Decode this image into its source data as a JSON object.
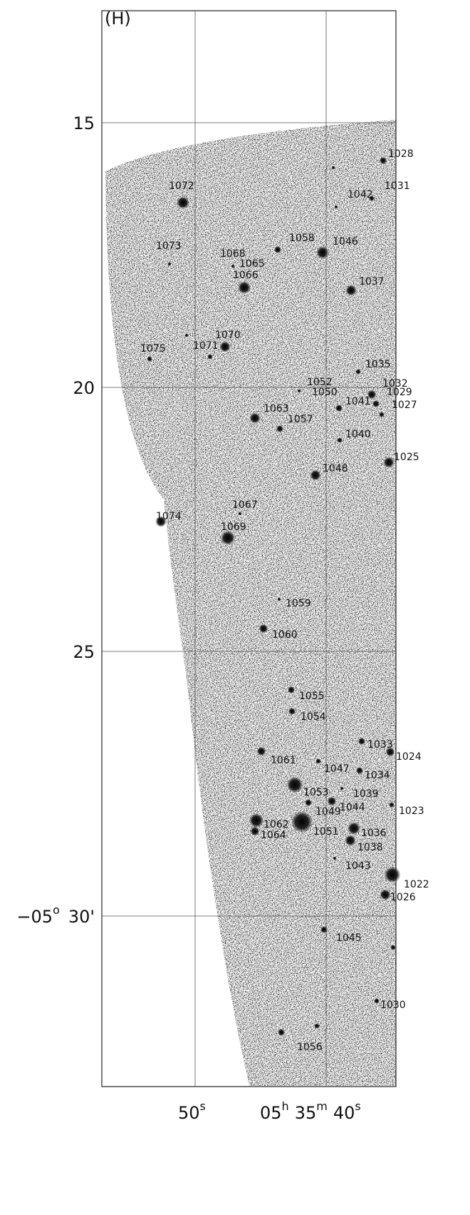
{
  "panel_label": "(H)",
  "y_labels": [
    "15",
    "20",
    "25"
  ],
  "dec_label": {
    "deg": "−05",
    "sup": "o",
    "min": "30'"
  },
  "x_labels": [
    {
      "value": "50",
      "unit": "s"
    },
    {
      "value": "05",
      "unit": "h"
    },
    {
      "value": "35",
      "unit": "m"
    },
    {
      "value": "40",
      "unit": "s"
    }
  ],
  "sources": [
    "1028",
    "1031",
    "1042",
    "1072",
    "1073",
    "1058",
    "1046",
    "1068",
    "1065",
    "1066",
    "1037",
    "1070",
    "1071",
    "1075",
    "1035",
    "1052",
    "1032",
    "1050",
    "1029",
    "1041",
    "1027",
    "1063",
    "1057",
    "1040",
    "1025",
    "1048",
    "1067",
    "1074",
    "1069",
    "1059",
    "1060",
    "1055",
    "1054",
    "1033",
    "1024",
    "1061",
    "1047",
    "1034",
    "1053",
    "1039",
    "1049",
    "1044",
    "1023",
    "1062",
    "1051",
    "1036",
    "1064",
    "1038",
    "1043",
    "1022",
    "1026",
    "1045",
    "1030",
    "1056"
  ]
}
